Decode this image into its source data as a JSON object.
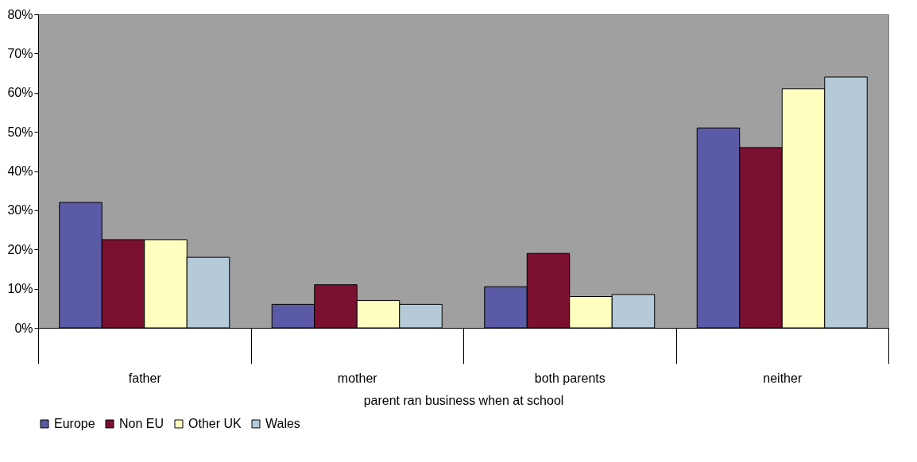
{
  "chart_data": {
    "type": "bar",
    "xlabel": "parent ran business when at school",
    "categories": [
      "father",
      "mother",
      "both parents",
      "neither"
    ],
    "series": [
      {
        "name": "Europe",
        "color": "#5a5aa6",
        "values": [
          32,
          6,
          10.5,
          51
        ]
      },
      {
        "name": "Non EU",
        "color": "#7a1030",
        "values": [
          22.5,
          11,
          19,
          46
        ]
      },
      {
        "name": "Other UK",
        "color": "#ffffc0",
        "values": [
          22.5,
          7,
          8,
          61
        ]
      },
      {
        "name": "Wales",
        "color": "#b4cad8",
        "values": [
          18,
          6,
          8.5,
          64
        ]
      }
    ],
    "ylim": [
      0,
      80
    ],
    "yticks": [
      {
        "value": 0,
        "label": "0%"
      },
      {
        "value": 10,
        "label": "10%"
      },
      {
        "value": 20,
        "label": "20%"
      },
      {
        "value": 30,
        "label": "30%"
      },
      {
        "value": 40,
        "label": "40%"
      },
      {
        "value": 50,
        "label": "50%"
      },
      {
        "value": 60,
        "label": "60%"
      },
      {
        "value": 70,
        "label": "70%"
      },
      {
        "value": 80,
        "label": "80%"
      }
    ],
    "legend": "bottom",
    "grid": false
  }
}
